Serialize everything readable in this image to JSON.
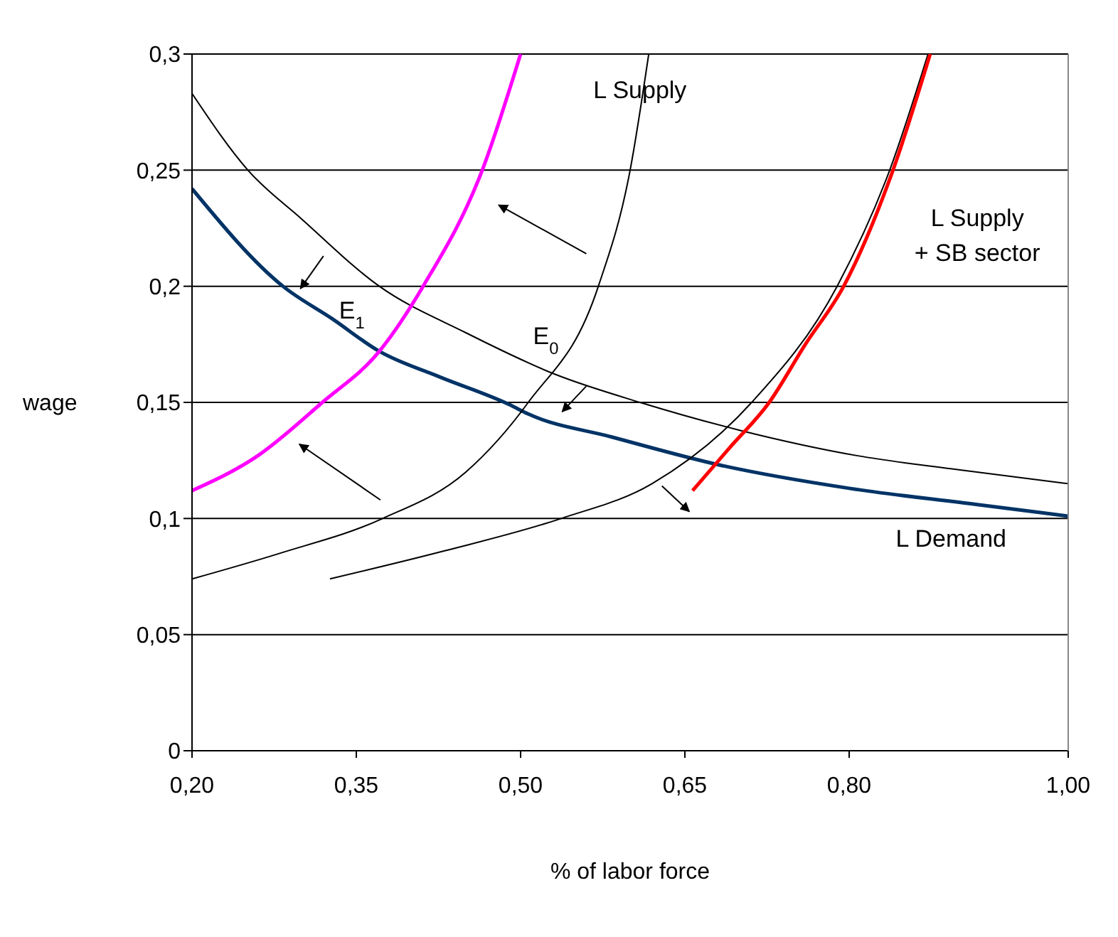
{
  "chart_data": {
    "type": "line",
    "xlabel": "% of labor force",
    "ylabel": "wage",
    "xlim": [
      0.2,
      1.0
    ],
    "xticks": [
      {
        "value": 0.2,
        "label": "0,20"
      },
      {
        "value": 0.35,
        "label": "0,35"
      },
      {
        "value": 0.5,
        "label": "0,50"
      },
      {
        "value": 0.65,
        "label": "0,65"
      },
      {
        "value": 0.8,
        "label": "0,80"
      },
      {
        "value": 1.0,
        "label": "1,00"
      }
    ],
    "ylim": [
      0,
      0.3
    ],
    "yticks": [
      {
        "value": 0,
        "label": "0"
      },
      {
        "value": 0.05,
        "label": "0,05"
      },
      {
        "value": 0.1,
        "label": "0,1"
      },
      {
        "value": 0.15,
        "label": "0,15"
      },
      {
        "value": 0.2,
        "label": "0,2"
      },
      {
        "value": 0.25,
        "label": "0,25"
      },
      {
        "value": 0.3,
        "label": "0,3"
      }
    ],
    "grid": "y",
    "line_style": "solid",
    "series": [
      {
        "color": "#000000",
        "x": [
          0.2,
          0.251,
          0.3,
          0.371,
          0.45,
          0.532,
          0.609,
          0.7,
          0.808,
          0.9,
          1.0
        ],
        "values": [
          0.283,
          0.25,
          0.229,
          0.2,
          0.18,
          0.162,
          0.15,
          0.138,
          0.127,
          0.121,
          0.115
        ]
      },
      {
        "color": "#003366",
        "x": [
          0.2,
          0.283,
          0.328,
          0.371,
          0.426,
          0.49,
          0.507,
          0.584,
          0.682,
          0.8,
          0.917,
          1.0
        ],
        "values": [
          0.242,
          0.2,
          0.186,
          0.172,
          0.161,
          0.149,
          0.145,
          0.135,
          0.123,
          0.113,
          0.106,
          0.101
        ]
      },
      {
        "color": "#000000",
        "x": [
          0.2,
          0.28,
          0.374,
          0.45,
          0.507,
          0.571,
          0.6,
          0.617
        ],
        "values": [
          0.074,
          0.085,
          0.1,
          0.12,
          0.15,
          0.2,
          0.25,
          0.3
        ]
      },
      {
        "color": "#ff00ff",
        "x": [
          0.2,
          0.26,
          0.319,
          0.371,
          0.411,
          0.465,
          0.5
        ],
        "values": [
          0.112,
          0.127,
          0.15,
          0.172,
          0.2,
          0.25,
          0.3
        ]
      },
      {
        "color": "#000000",
        "x": [
          0.326,
          0.43,
          0.537,
          0.62,
          0.711,
          0.789,
          0.837,
          0.872
        ],
        "values": [
          0.074,
          0.086,
          0.1,
          0.115,
          0.15,
          0.2,
          0.25,
          0.3
        ]
      },
      {
        "color": "#ff0000",
        "x": [
          0.657,
          0.69,
          0.727,
          0.76,
          0.795,
          0.84,
          0.874
        ],
        "values": [
          0.112,
          0.13,
          0.15,
          0.175,
          0.2,
          0.25,
          0.3
        ]
      }
    ],
    "annotations": [
      "L Supply",
      "L Supply\n+ SB sector",
      "L Demand",
      "E$_{1}$",
      "E$_{0}$"
    ]
  }
}
